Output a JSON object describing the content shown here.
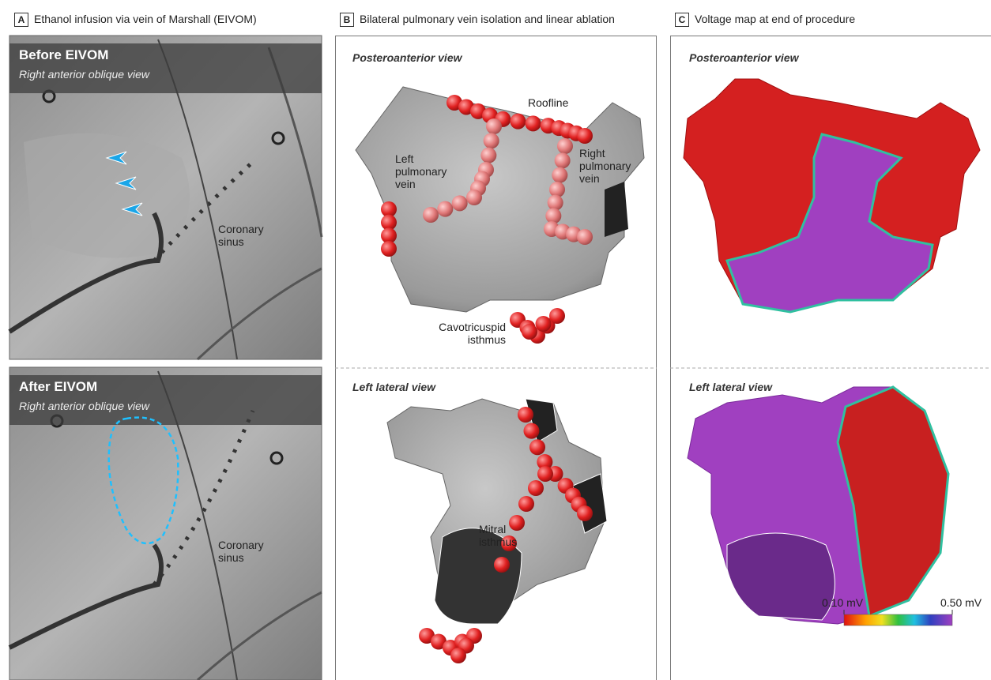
{
  "panels": [
    {
      "letter": "A",
      "title": "Ethanol infusion via vein of Marshall (EIVOM)",
      "images": [
        {
          "title": "Before EIVOM",
          "subtitle": "Right anterior oblique view",
          "label": "Coronary sinus"
        },
        {
          "title": "After EIVOM",
          "subtitle": "Right anterior oblique view",
          "label": "Coronary sinus"
        }
      ]
    },
    {
      "letter": "B",
      "title": "Bilateral pulmonary vein isolation and linear ablation",
      "views": [
        {
          "title": "Posteroanterior view",
          "labels": [
            "Roofline",
            "Left pulmonary vein",
            "Right pulmonary vein",
            "Cavotricuspid isthmus"
          ]
        },
        {
          "title": "Left lateral view",
          "labels": [
            "Mitral isthmus"
          ]
        }
      ]
    },
    {
      "letter": "C",
      "title": "Voltage map at end of procedure",
      "views": [
        {
          "title": "Posteroanterior view"
        },
        {
          "title": "Left lateral view"
        }
      ],
      "colorbar": {
        "min_label": "0.10 mV",
        "max_label": "0.50 mV"
      }
    }
  ]
}
